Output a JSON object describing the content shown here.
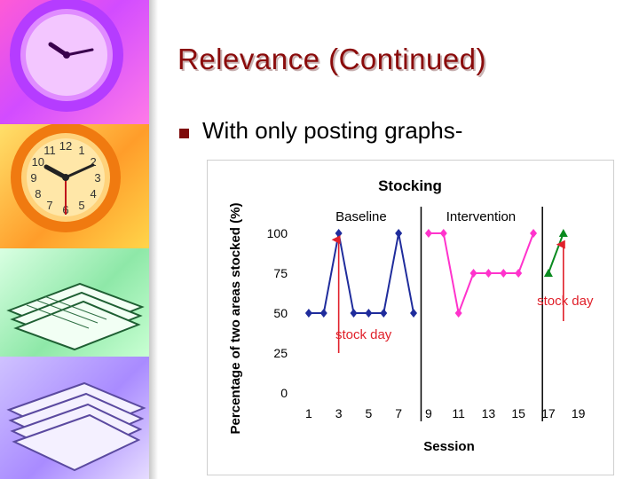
{
  "slide": {
    "title": "Relevance (Continued)",
    "bullet_text": "With only posting graphs-"
  },
  "decor": {
    "clock_numbers": [
      "12",
      "1",
      "2",
      "3",
      "4",
      "5",
      "6",
      "7",
      "8",
      "9",
      "10",
      "11"
    ]
  },
  "colors": {
    "baseline": "#1f2c9c",
    "intervention": "#ff33cc",
    "followup": "#0a8a1f",
    "annotation": "#e0202a",
    "title": "#8a0b0b"
  },
  "chart_data": {
    "type": "line",
    "title": "Stocking",
    "xlabel": "Session",
    "ylabel": "Percentage of two areas stocked (%)",
    "xlim": [
      0,
      20.5
    ],
    "ylim": [
      0,
      100
    ],
    "xticks": [
      1,
      3,
      5,
      7,
      9,
      11,
      13,
      15,
      17,
      19
    ],
    "yticks": [
      0,
      25,
      50,
      75,
      100
    ],
    "phase_lines": [
      8.5,
      16.6
    ],
    "phase_labels": [
      {
        "text": "Baseline",
        "x": 4.5
      },
      {
        "text": "Intervention",
        "x": 12.5
      }
    ],
    "series": [
      {
        "x": [
          1,
          2,
          3,
          4,
          5,
          6,
          7,
          8
        ],
        "y": [
          50,
          50,
          100,
          50,
          50,
          50,
          100,
          50
        ],
        "marker": "diamond",
        "color": "#1f2c9c"
      },
      {
        "x": [
          9,
          10,
          11,
          12,
          13,
          14,
          15,
          16
        ],
        "y": [
          100,
          100,
          50,
          75,
          75,
          75,
          75,
          100
        ],
        "marker": "diamond",
        "color": "#ff33cc"
      },
      {
        "x": [
          17,
          18
        ],
        "y": [
          75,
          100
        ],
        "marker": "triangle",
        "color": "#0a8a1f"
      }
    ],
    "annotations": [
      {
        "text": "stock day",
        "arrow_x": 3,
        "arrow_y_from": 25,
        "arrow_y_to": 96
      },
      {
        "text": "stock day",
        "arrow_x": 18,
        "arrow_y_from": 45,
        "arrow_y_to": 93
      }
    ],
    "grid": false,
    "legend": "none"
  }
}
